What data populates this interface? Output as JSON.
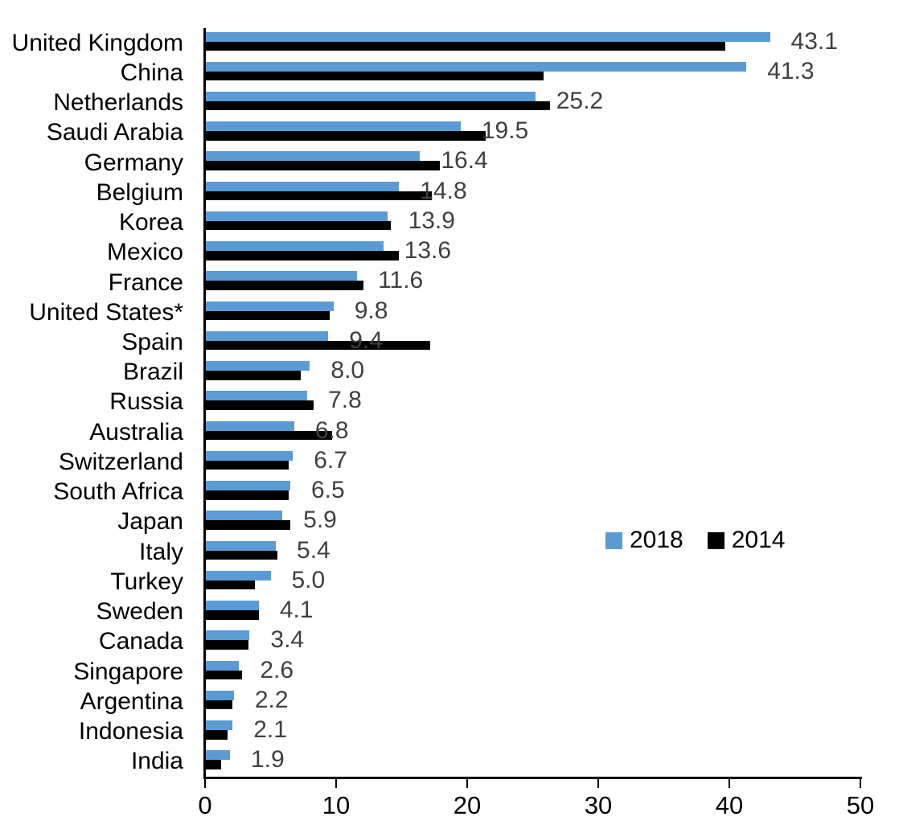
{
  "chart_data": {
    "type": "bar",
    "orientation": "horizontal",
    "title": "",
    "xlabel": "",
    "ylabel": "",
    "xlim": [
      0,
      50
    ],
    "x_ticks": [
      0,
      10,
      20,
      30,
      40,
      50
    ],
    "grid": false,
    "legend_position": "middle-right",
    "legend": [
      {
        "name": "2018",
        "color": "#5B9BD5"
      },
      {
        "name": "2014",
        "color": "#000000"
      }
    ],
    "categories": [
      "United Kingdom",
      "China",
      "Netherlands",
      "Saudi Arabia",
      "Germany",
      "Belgium",
      "Korea",
      "Mexico",
      "France",
      "United States*",
      "Spain",
      "Brazil",
      "Russia",
      "Australia",
      "Switzerland",
      "South Africa",
      "Japan",
      "Italy",
      "Turkey",
      "Sweden",
      "Canada",
      "Singapore",
      "Argentina",
      "Indonesia",
      "India"
    ],
    "series": [
      {
        "name": "2018",
        "color": "#5B9BD5",
        "values": [
          43.1,
          41.3,
          25.2,
          19.5,
          16.4,
          14.8,
          13.9,
          13.6,
          11.6,
          9.8,
          9.4,
          8.0,
          7.8,
          6.8,
          6.7,
          6.5,
          5.9,
          5.4,
          5.0,
          4.1,
          3.4,
          2.6,
          2.2,
          2.1,
          1.9
        ]
      },
      {
        "name": "2014",
        "color": "#000000",
        "values": [
          39.7,
          25.8,
          26.3,
          21.4,
          17.9,
          17.3,
          14.2,
          14.8,
          12.1,
          9.5,
          17.2,
          7.3,
          8.3,
          9.7,
          6.4,
          6.4,
          6.5,
          5.5,
          3.8,
          4.1,
          3.3,
          2.8,
          2.1,
          1.7,
          1.2
        ]
      }
    ],
    "data_labels": [
      "43.1",
      "41.3",
      "25.2",
      "19.5",
      "16.4",
      "14.8",
      "13.9",
      "13.6",
      "11.6",
      "9.8",
      "9.4",
      "8.0",
      "7.8",
      "6.8",
      "6.7",
      "6.5",
      "5.9",
      "5.4",
      "5.0",
      "4.1",
      "3.4",
      "2.6",
      "2.2",
      "2.1",
      "1.9"
    ],
    "data_label_series": "2018",
    "data_label_color": "#404040"
  },
  "colors": {
    "background": "#ffffff",
    "axis": "#000000",
    "category_text": "#000000",
    "value_text": "#404040",
    "blue_series": "#5B9BD5",
    "black_series": "#000000"
  }
}
